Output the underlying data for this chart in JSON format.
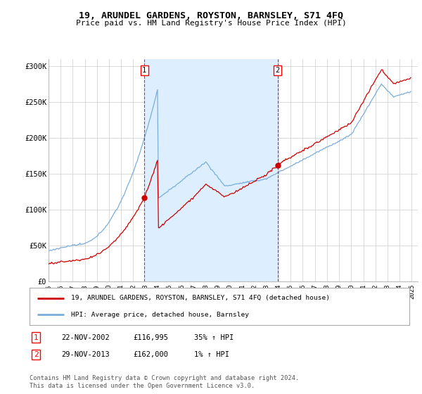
{
  "title": "19, ARUNDEL GARDENS, ROYSTON, BARNSLEY, S71 4FQ",
  "subtitle": "Price paid vs. HM Land Registry's House Price Index (HPI)",
  "ylabel_ticks": [
    "£0",
    "£50K",
    "£100K",
    "£150K",
    "£200K",
    "£250K",
    "£300K"
  ],
  "ytick_values": [
    0,
    50000,
    100000,
    150000,
    200000,
    250000,
    300000
  ],
  "ylim": [
    0,
    310000
  ],
  "xlim_start": 1995.0,
  "xlim_end": 2025.5,
  "marker1_x": 2002.92,
  "marker1_y": 116995,
  "marker2_x": 2013.92,
  "marker2_y": 162000,
  "sale_color": "#cc0000",
  "hpi_color": "#7aaddb",
  "shade_color": "#ddeeff",
  "dashed_color": "#cc0000",
  "legend_sale": "19, ARUNDEL GARDENS, ROYSTON, BARNSLEY, S71 4FQ (detached house)",
  "legend_hpi": "HPI: Average price, detached house, Barnsley",
  "table_rows": [
    {
      "num": "1",
      "date": "22-NOV-2002",
      "price": "£116,995",
      "pct": "35% ↑ HPI"
    },
    {
      "num": "2",
      "date": "29-NOV-2013",
      "price": "£162,000",
      "pct": "1% ↑ HPI"
    }
  ],
  "footnote": "Contains HM Land Registry data © Crown copyright and database right 2024.\nThis data is licensed under the Open Government Licence v3.0.",
  "background_color": "#ffffff",
  "grid_color": "#cccccc"
}
